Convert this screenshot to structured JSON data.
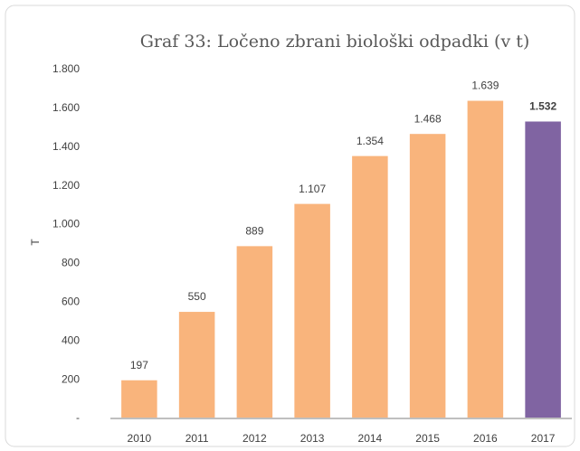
{
  "chart_data": {
    "type": "bar",
    "title": "Graf 33: Ločeno zbrani biološki odpadki (v t)",
    "ylabel": "T",
    "categories": [
      "2010",
      "2011",
      "2012",
      "2013",
      "2014",
      "2015",
      "2016",
      "2017"
    ],
    "values": [
      197,
      550,
      889,
      1107,
      1354,
      1468,
      1639,
      1532
    ],
    "value_labels": [
      "197",
      "550",
      "889",
      "1.107",
      "1.354",
      "1.468",
      "1.639",
      "1.532"
    ],
    "value_label_bold": [
      false,
      false,
      false,
      false,
      false,
      false,
      false,
      true
    ],
    "colors": [
      "#f9b47c",
      "#f9b47c",
      "#f9b47c",
      "#f9b47c",
      "#f9b47c",
      "#f9b47c",
      "#f9b47c",
      "#8064a2"
    ],
    "ylim": [
      0,
      1800
    ],
    "yticks": [
      {
        "value": 0,
        "label": "-"
      },
      200,
      400,
      600,
      800,
      {
        "value": 1000,
        "label": "1.000"
      },
      {
        "value": 1200,
        "label": "1.200"
      },
      {
        "value": 1400,
        "label": "1.400"
      },
      {
        "value": 1600,
        "label": "1.600"
      },
      {
        "value": 1800,
        "label": "1.800"
      }
    ],
    "grid": false
  }
}
